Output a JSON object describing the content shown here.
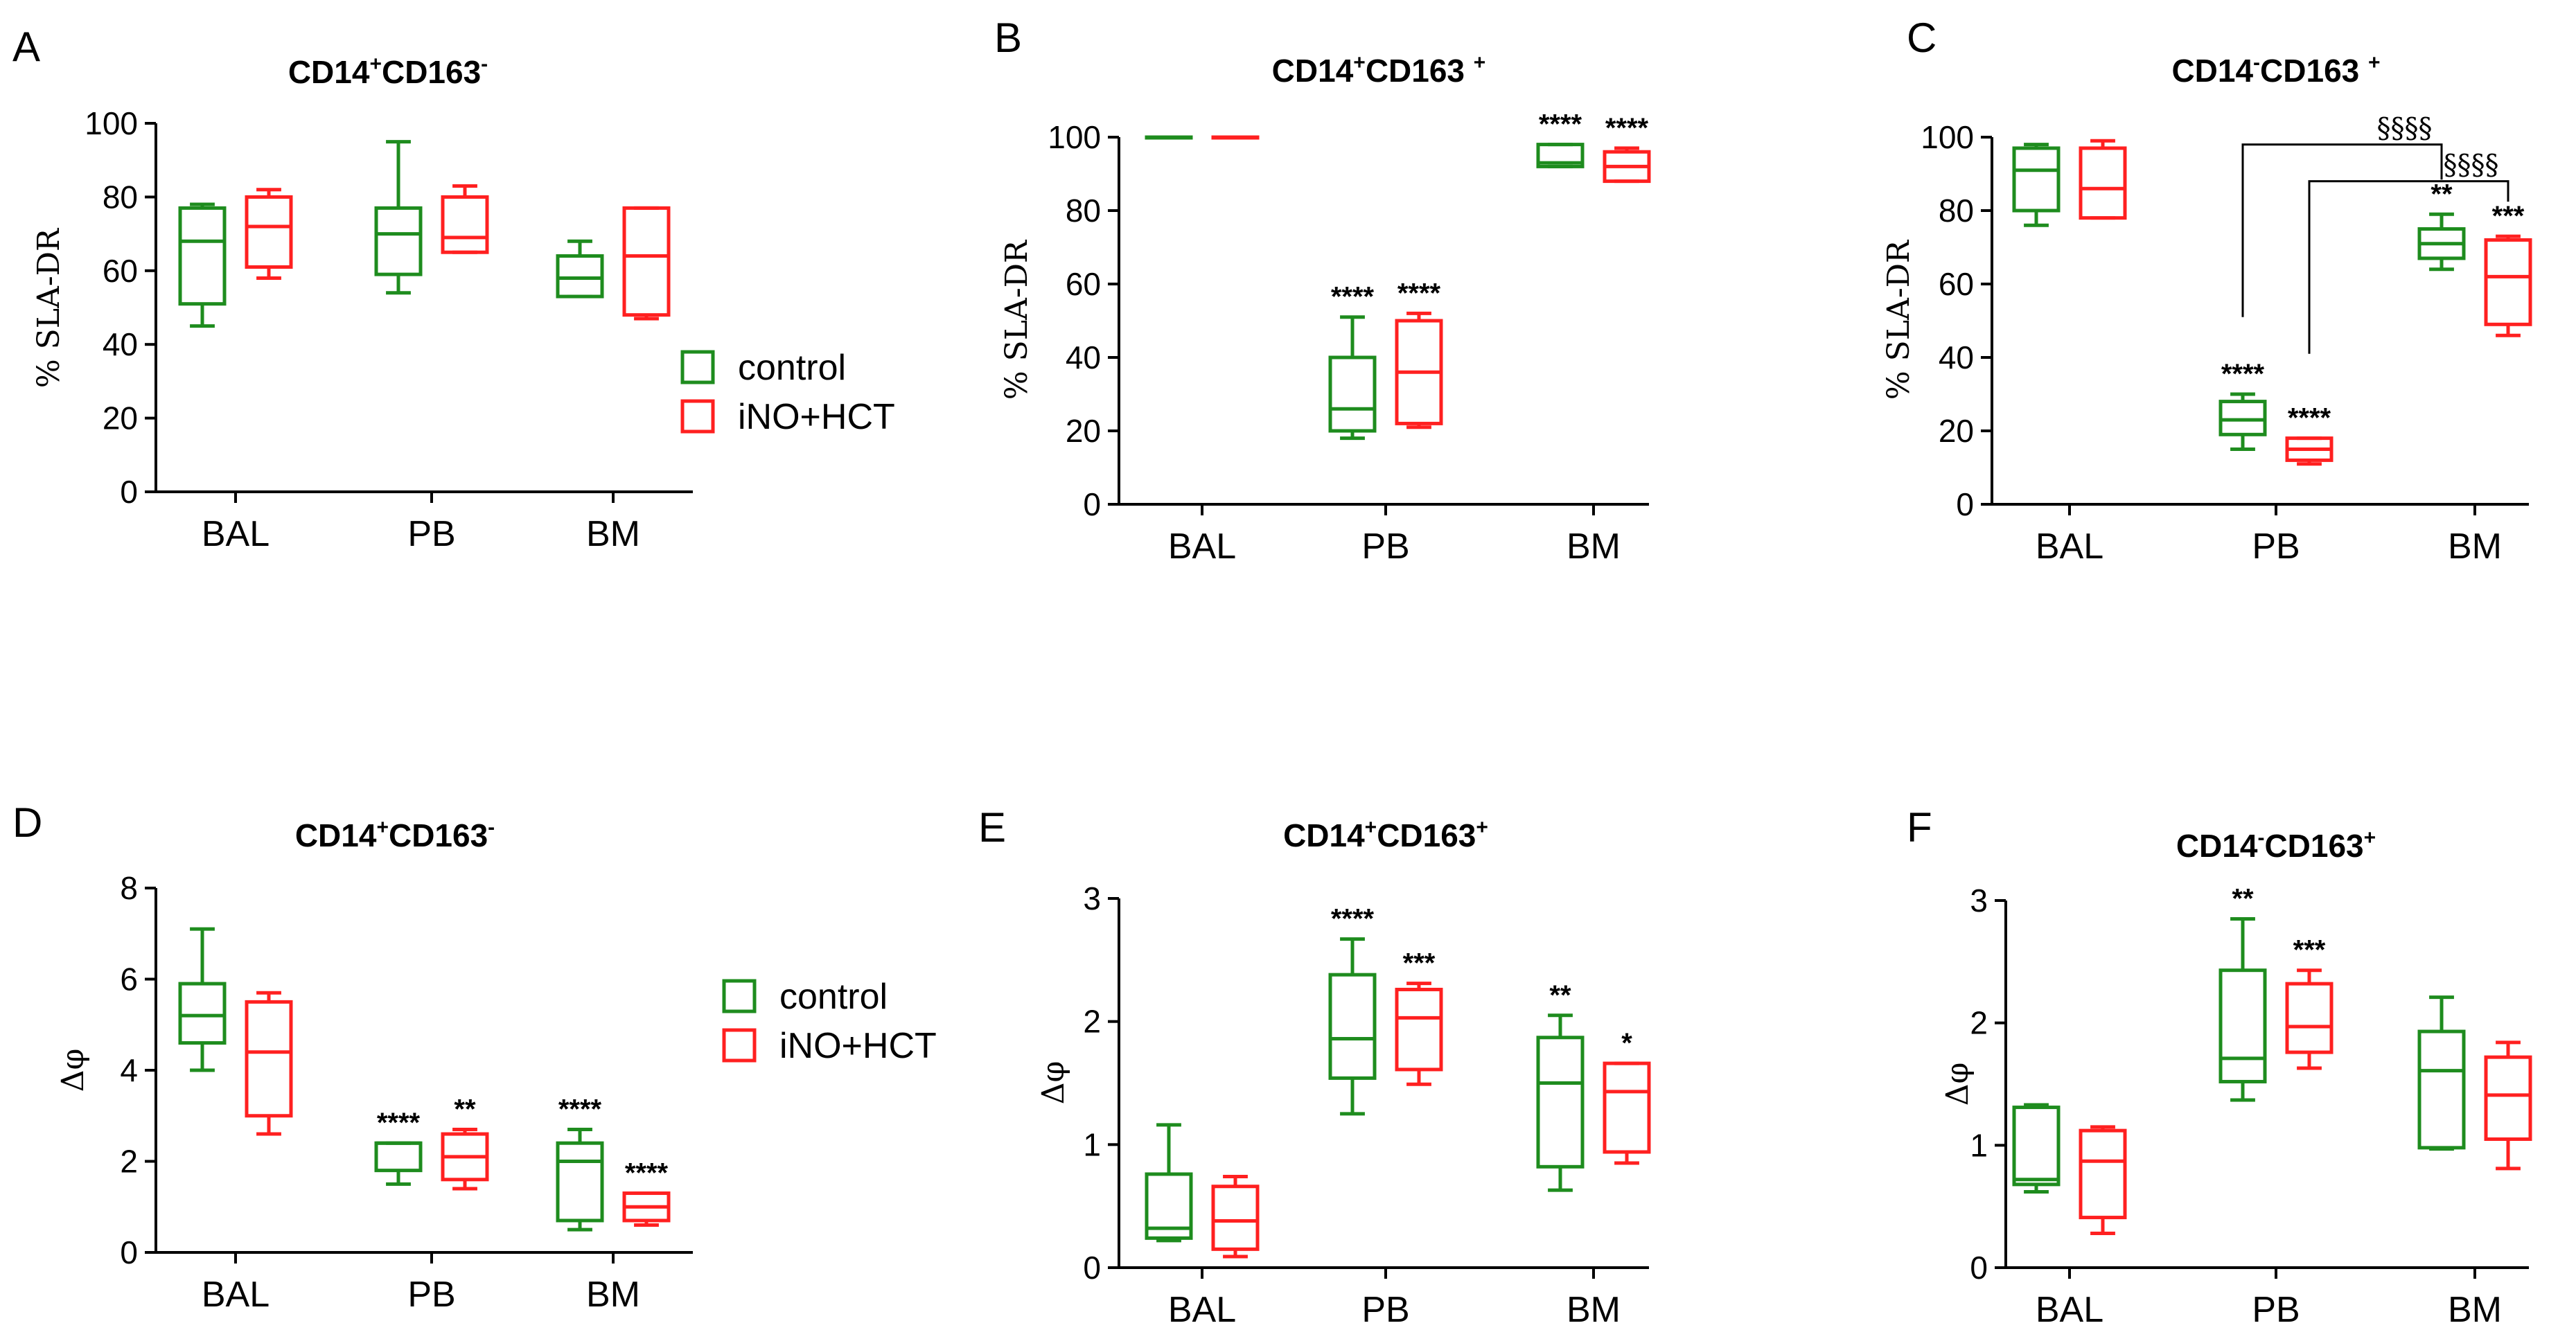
{
  "colors": {
    "control": "#1e8c1e",
    "ino_hct": "#ff2020"
  },
  "legend": {
    "control": "control",
    "ino_hct": "iNO+HCT"
  },
  "chart_data": [
    {
      "panel": "A",
      "type": "box",
      "title": {
        "pre": "CD14",
        "sup1": "+",
        "mid": "CD163",
        "sup2": "-"
      },
      "ylabel": "% SLA-DR",
      "ylim": [
        0,
        100
      ],
      "yticks": [
        "0",
        "20",
        "40",
        "60",
        "80",
        "100"
      ],
      "categories": [
        "BAL",
        "PB",
        "BM"
      ],
      "series": [
        {
          "name": "control",
          "boxes": [
            {
              "min": 45,
              "q1": 51,
              "median": 68,
              "q3": 77,
              "max": 78
            },
            {
              "min": 54,
              "q1": 59,
              "median": 70,
              "q3": 77,
              "max": 95
            },
            {
              "min": 53,
              "q1": 53,
              "median": 58,
              "q3": 64,
              "max": 68
            }
          ]
        },
        {
          "name": "iNO+HCT",
          "boxes": [
            {
              "min": 58,
              "q1": 61,
              "median": 72,
              "q3": 80,
              "max": 82
            },
            {
              "min": 65,
              "q1": 65,
              "median": 69,
              "q3": 80,
              "max": 83
            },
            {
              "min": 47,
              "q1": 48,
              "median": 64,
              "q3": 77,
              "max": 77
            }
          ]
        }
      ],
      "annotations": [],
      "brackets": []
    },
    {
      "panel": "B",
      "type": "box",
      "title": {
        "pre": "CD14",
        "sup1": "+",
        "mid": "CD163 ",
        "sup2": "+"
      },
      "ylabel": "% SLA-DR",
      "ylim": [
        0,
        100
      ],
      "yticks": [
        "0",
        "20",
        "40",
        "60",
        "80",
        "100"
      ],
      "categories": [
        "BAL",
        "PB",
        "BM"
      ],
      "series": [
        {
          "name": "control",
          "boxes": [
            {
              "min": 100,
              "q1": 100,
              "median": 100,
              "q3": 100,
              "max": 100
            },
            {
              "min": 18,
              "q1": 20,
              "median": 26,
              "q3": 40,
              "max": 51
            },
            {
              "min": 92,
              "q1": 92,
              "median": 93,
              "q3": 98,
              "max": 98
            }
          ]
        },
        {
          "name": "iNO+HCT",
          "boxes": [
            {
              "min": 100,
              "q1": 100,
              "median": 100,
              "q3": 100,
              "max": 100
            },
            {
              "min": 21,
              "q1": 22,
              "median": 36,
              "q3": 50,
              "max": 52
            },
            {
              "min": 88,
              "q1": 88,
              "median": 92,
              "q3": 96,
              "max": 97
            }
          ]
        }
      ],
      "annotations": [
        {
          "cat": 1,
          "series": 0,
          "text": "****"
        },
        {
          "cat": 1,
          "series": 1,
          "text": "****"
        },
        {
          "cat": 2,
          "series": 0,
          "text": "****"
        },
        {
          "cat": 2,
          "series": 1,
          "text": "****"
        }
      ],
      "brackets": []
    },
    {
      "panel": "C",
      "type": "box",
      "title": {
        "pre": "CD14",
        "sup1": "-",
        "mid": "CD163 ",
        "sup2": "+"
      },
      "ylabel": "% SLA-DR",
      "ylim": [
        0,
        100
      ],
      "yticks": [
        "0",
        "20",
        "40",
        "60",
        "80",
        "100"
      ],
      "categories": [
        "BAL",
        "PB",
        "BM"
      ],
      "series": [
        {
          "name": "control",
          "boxes": [
            {
              "min": 76,
              "q1": 80,
              "median": 91,
              "q3": 97,
              "max": 98
            },
            {
              "min": 15,
              "q1": 19,
              "median": 23,
              "q3": 28,
              "max": 30
            },
            {
              "min": 64,
              "q1": 67,
              "median": 71,
              "q3": 75,
              "max": 79
            }
          ]
        },
        {
          "name": "iNO+HCT",
          "boxes": [
            {
              "min": 78,
              "q1": 78,
              "median": 86,
              "q3": 97,
              "max": 99
            },
            {
              "min": 11,
              "q1": 12,
              "median": 15,
              "q3": 18,
              "max": 18
            },
            {
              "min": 46,
              "q1": 49,
              "median": 62,
              "q3": 72,
              "max": 73
            }
          ]
        }
      ],
      "annotations": [
        {
          "cat": 1,
          "series": 0,
          "text": "****"
        },
        {
          "cat": 1,
          "series": 1,
          "text": "****"
        },
        {
          "cat": 2,
          "series": 0,
          "text": "**"
        },
        {
          "cat": 2,
          "series": 1,
          "text": "***"
        }
      ],
      "brackets": [
        {
          "label": "§§§§",
          "from": 1,
          "to": 2,
          "series": 0,
          "y": 98,
          "start_y": 51
        },
        {
          "label": "§§§§",
          "from": 1,
          "to": 2,
          "series": 1,
          "y": 88,
          "start_y": 41
        }
      ]
    },
    {
      "panel": "D",
      "type": "box",
      "title": {
        "pre": "CD14",
        "sup1": "+",
        "mid": "CD163",
        "sup2": "-"
      },
      "ylabel": "Δφ",
      "ylim": [
        0,
        8
      ],
      "yticks": [
        "0",
        "2",
        "4",
        "6",
        "8"
      ],
      "categories": [
        "BAL",
        "PB",
        "BM"
      ],
      "series": [
        {
          "name": "control",
          "boxes": [
            {
              "min": 4.0,
              "q1": 4.6,
              "median": 5.2,
              "q3": 5.9,
              "max": 7.1
            },
            {
              "min": 1.5,
              "q1": 1.8,
              "median": 2.4,
              "q3": 2.4,
              "max": 2.4
            },
            {
              "min": 0.5,
              "q1": 0.7,
              "median": 2.0,
              "q3": 2.4,
              "max": 2.7
            }
          ]
        },
        {
          "name": "iNO+HCT",
          "boxes": [
            {
              "min": 2.6,
              "q1": 3.0,
              "median": 4.4,
              "q3": 5.5,
              "max": 5.7
            },
            {
              "min": 1.4,
              "q1": 1.6,
              "median": 2.1,
              "q3": 2.6,
              "max": 2.7
            },
            {
              "min": 0.6,
              "q1": 0.7,
              "median": 1.0,
              "q3": 1.3,
              "max": 1.3
            }
          ]
        }
      ],
      "annotations": [
        {
          "cat": 1,
          "series": 0,
          "text": "****"
        },
        {
          "cat": 1,
          "series": 1,
          "text": "**"
        },
        {
          "cat": 2,
          "series": 0,
          "text": "****"
        },
        {
          "cat": 2,
          "series": 1,
          "text": "****"
        }
      ],
      "brackets": []
    },
    {
      "panel": "E",
      "type": "box",
      "title": {
        "pre": "CD14",
        "sup1": "+",
        "mid": "CD163",
        "sup2": "+"
      },
      "ylabel": "Δφ",
      "ylim": [
        0,
        3
      ],
      "yticks": [
        "0",
        "1",
        "2",
        "3"
      ],
      "categories": [
        "BAL",
        "PB",
        "BM"
      ],
      "series": [
        {
          "name": "control",
          "boxes": [
            {
              "min": 0.22,
              "q1": 0.24,
              "median": 0.32,
              "q3": 0.76,
              "max": 1.16
            },
            {
              "min": 1.25,
              "q1": 1.54,
              "median": 1.86,
              "q3": 2.38,
              "max": 2.67
            },
            {
              "min": 0.63,
              "q1": 0.82,
              "median": 1.5,
              "q3": 1.87,
              "max": 2.05
            }
          ]
        },
        {
          "name": "iNO+HCT",
          "boxes": [
            {
              "min": 0.09,
              "q1": 0.15,
              "median": 0.38,
              "q3": 0.66,
              "max": 0.74
            },
            {
              "min": 1.49,
              "q1": 1.61,
              "median": 2.03,
              "q3": 2.26,
              "max": 2.31
            },
            {
              "min": 0.85,
              "q1": 0.94,
              "median": 1.43,
              "q3": 1.66,
              "max": 1.66
            }
          ]
        }
      ],
      "annotations": [
        {
          "cat": 1,
          "series": 0,
          "text": "****"
        },
        {
          "cat": 1,
          "series": 1,
          "text": "***"
        },
        {
          "cat": 2,
          "series": 0,
          "text": "**"
        },
        {
          "cat": 2,
          "series": 1,
          "text": "*"
        }
      ],
      "brackets": []
    },
    {
      "panel": "F",
      "type": "box",
      "title": {
        "pre": "CD14",
        "sup1": "-",
        "mid": "CD163",
        "sup2": "+"
      },
      "ylabel": "Δφ",
      "ylim": [
        0,
        3
      ],
      "yticks": [
        "0",
        "1",
        "2",
        "3"
      ],
      "categories": [
        "BAL",
        "PB",
        "BM"
      ],
      "series": [
        {
          "name": "control",
          "boxes": [
            {
              "min": 0.62,
              "q1": 0.68,
              "median": 0.72,
              "q3": 1.31,
              "max": 1.33
            },
            {
              "min": 1.37,
              "q1": 1.52,
              "median": 1.71,
              "q3": 2.43,
              "max": 2.85
            },
            {
              "min": 0.97,
              "q1": 0.98,
              "median": 1.61,
              "q3": 1.93,
              "max": 2.21
            }
          ]
        },
        {
          "name": "iNO+HCT",
          "boxes": [
            {
              "min": 0.28,
              "q1": 0.41,
              "median": 0.87,
              "q3": 1.12,
              "max": 1.15
            },
            {
              "min": 1.63,
              "q1": 1.76,
              "median": 1.97,
              "q3": 2.32,
              "max": 2.43
            },
            {
              "min": 0.81,
              "q1": 1.05,
              "median": 1.41,
              "q3": 1.72,
              "max": 1.84
            }
          ]
        }
      ],
      "annotations": [
        {
          "cat": 1,
          "series": 0,
          "text": "**"
        },
        {
          "cat": 1,
          "series": 1,
          "text": "***"
        }
      ],
      "brackets": []
    }
  ]
}
